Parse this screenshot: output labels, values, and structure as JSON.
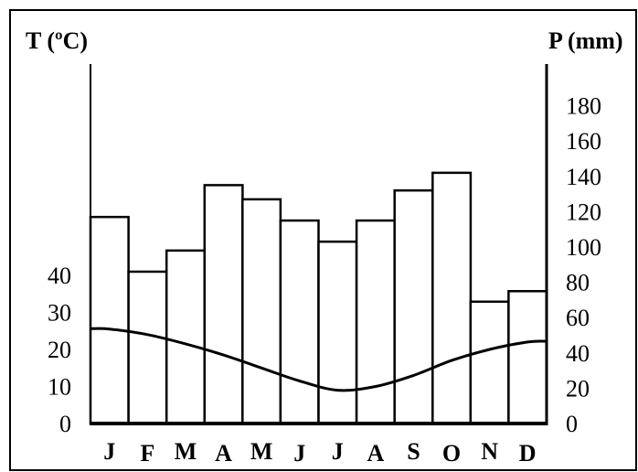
{
  "chart_data": {
    "type": "bar",
    "title": "",
    "categories": [
      "J",
      "F",
      "M",
      "A",
      "M",
      "J",
      "J",
      "A",
      "S",
      "O",
      "N",
      "D"
    ],
    "y_left_label": "T (ºC)",
    "y_right_label": "P (mm)",
    "y_left_ticks": [
      "0",
      "10",
      "20",
      "30",
      "40"
    ],
    "y_right_ticks": [
      "0",
      "20",
      "40",
      "60",
      "80",
      "100",
      "120",
      "140",
      "160",
      "180"
    ],
    "y_left_range": [
      0,
      40
    ],
    "y_right_range": [
      0,
      180
    ],
    "grid": false,
    "series": [
      {
        "kind": "bar",
        "axis": "right",
        "values": [
          117,
          86,
          98,
          135,
          127,
          115,
          103,
          115,
          132,
          142,
          69,
          75
        ]
      },
      {
        "kind": "line",
        "axis": "left",
        "values": [
          25.5,
          24,
          21.5,
          18.5,
          15,
          11.5,
          9,
          10,
          13,
          17,
          20,
          22
        ]
      }
    ],
    "colors": {
      "bar_fill": "#ffffff",
      "stroke": "#000000",
      "background": "#ffffff"
    }
  }
}
